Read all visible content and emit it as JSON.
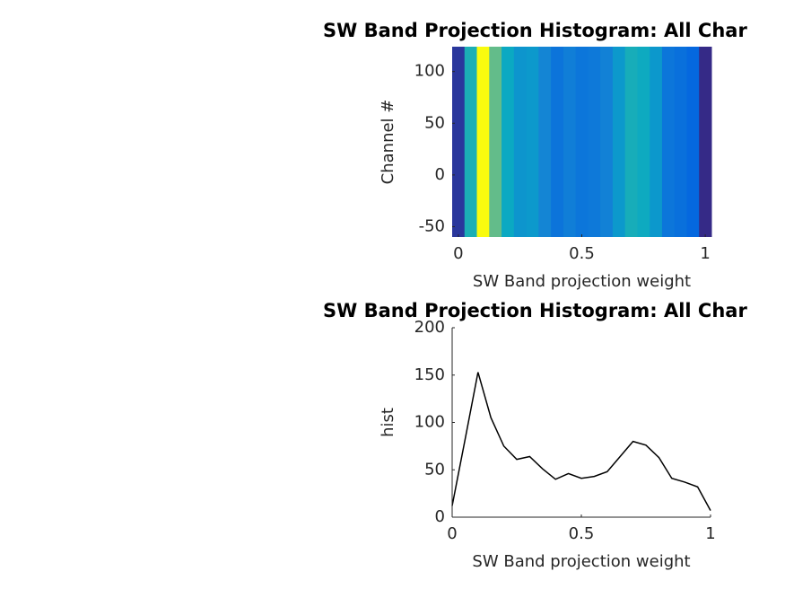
{
  "chart_data": [
    {
      "type": "heatmap",
      "title": "SW Band Projection Histogram: All Char",
      "xlabel": "SW Band projection weight",
      "ylabel": "Channel #",
      "x": [
        0,
        0.05,
        0.1,
        0.15,
        0.2,
        0.25,
        0.3,
        0.35,
        0.4,
        0.45,
        0.5,
        0.55,
        0.6,
        0.65,
        0.7,
        0.75,
        0.8,
        0.85,
        0.9,
        0.95,
        1
      ],
      "values": [
        12,
        82,
        153,
        105,
        75,
        61,
        64,
        51,
        40,
        46,
        41,
        43,
        48,
        64,
        80,
        76,
        63,
        41,
        37,
        32,
        7
      ],
      "colormap": "parula",
      "xlim": [
        -0.025,
        1.025
      ],
      "ylim": [
        -60,
        124
      ],
      "xticks": [
        0,
        0.5,
        1
      ],
      "yticks": [
        -50,
        0,
        50,
        100
      ]
    },
    {
      "type": "line",
      "title": "SW Band Projection Histogram: All Char",
      "xlabel": "SW Band projection weight",
      "ylabel": "hist",
      "x": [
        0,
        0.05,
        0.1,
        0.15,
        0.2,
        0.25,
        0.3,
        0.35,
        0.4,
        0.45,
        0.5,
        0.55,
        0.6,
        0.65,
        0.7,
        0.75,
        0.8,
        0.85,
        0.9,
        0.95,
        1
      ],
      "series": [
        {
          "color": "#000000",
          "values": [
            12,
            82,
            153,
            105,
            75,
            61,
            64,
            51,
            40,
            46,
            41,
            43,
            48,
            64,
            80,
            76,
            63,
            41,
            37,
            32,
            7
          ]
        }
      ],
      "xlim": [
        0,
        1
      ],
      "ylim": [
        0,
        200
      ],
      "xticks": [
        0,
        0.5,
        1
      ],
      "yticks": [
        0,
        50,
        100,
        150,
        200
      ]
    }
  ]
}
